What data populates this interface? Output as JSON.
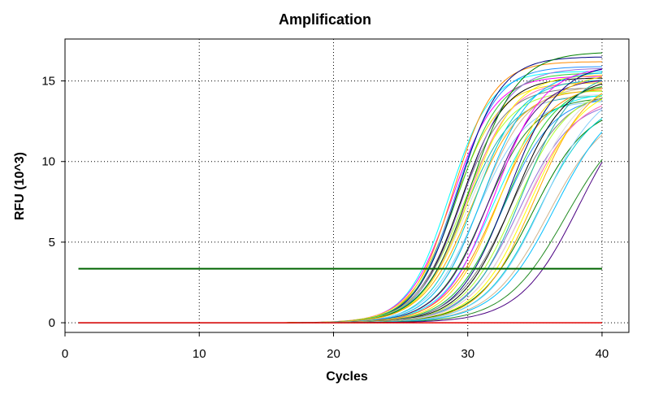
{
  "chart_data": {
    "type": "line",
    "title": "Amplification",
    "xlabel": "Cycles",
    "ylabel": "RFU (10^3)",
    "xlim": [
      0,
      42
    ],
    "ylim": [
      -0.6,
      17.6
    ],
    "xticks": [
      0,
      10,
      20,
      30,
      40
    ],
    "yticks": [
      0,
      5,
      10,
      15
    ],
    "grid": true,
    "legend": "none",
    "threshold": {
      "value": 3.35,
      "x_start": 1,
      "x_end": 40,
      "color": "#006400"
    },
    "baseline": {
      "value": 0,
      "color": "#e00000"
    },
    "colors": [
      "#00ffff",
      "#ff00ff",
      "#ff8c00",
      "#ffd700",
      "#1e90ff",
      "#32cd32",
      "#000080",
      "#808080",
      "#000000",
      "#adff2f",
      "#9370db",
      "#20b2aa",
      "#ff69b4",
      "#dcdcdc",
      "#ffff00",
      "#008000",
      "#ffa500",
      "#00ced1",
      "#87cefa",
      "#d2b48c",
      "#00bfff",
      "#228b22",
      "#4b0082"
    ],
    "curve_params": [
      {
        "c": 28.6,
        "k": 0.65,
        "p": 15.6
      },
      {
        "c": 28.8,
        "k": 0.62,
        "p": 15.3
      },
      {
        "c": 28.9,
        "k": 0.66,
        "p": 16.2
      },
      {
        "c": 29.0,
        "k": 0.6,
        "p": 14.9
      },
      {
        "c": 29.1,
        "k": 0.64,
        "p": 15.9
      },
      {
        "c": 29.2,
        "k": 0.61,
        "p": 15.5
      },
      {
        "c": 29.3,
        "k": 0.63,
        "p": 16.5
      },
      {
        "c": 29.4,
        "k": 0.6,
        "p": 14.6
      },
      {
        "c": 29.5,
        "k": 0.62,
        "p": 15.2
      },
      {
        "c": 29.6,
        "k": 0.58,
        "p": 14.4
      },
      {
        "c": 29.7,
        "k": 0.6,
        "p": 15.8
      },
      {
        "c": 29.8,
        "k": 0.57,
        "p": 14.1
      },
      {
        "c": 29.9,
        "k": 0.6,
        "p": 15.0
      },
      {
        "c": 30.0,
        "k": 0.56,
        "p": 14.2
      },
      {
        "c": 30.1,
        "k": 0.58,
        "p": 15.4
      },
      {
        "c": 30.2,
        "k": 0.57,
        "p": 16.8
      },
      {
        "c": 30.3,
        "k": 0.55,
        "p": 14.5
      },
      {
        "c": 30.5,
        "k": 0.58,
        "p": 15.1
      },
      {
        "c": 30.7,
        "k": 0.55,
        "p": 13.8
      },
      {
        "c": 30.9,
        "k": 0.57,
        "p": 14.7
      },
      {
        "c": 31.1,
        "k": 0.56,
        "p": 15.6
      },
      {
        "c": 31.3,
        "k": 0.55,
        "p": 14.0
      },
      {
        "c": 31.6,
        "k": 0.54,
        "p": 15.2
      },
      {
        "c": 31.8,
        "k": 0.53,
        "p": 14.3
      },
      {
        "c": 32.0,
        "k": 0.55,
        "p": 15.9
      },
      {
        "c": 32.2,
        "k": 0.52,
        "p": 14.8
      },
      {
        "c": 32.4,
        "k": 0.54,
        "p": 15.5
      },
      {
        "c": 32.6,
        "k": 0.53,
        "p": 14.1
      },
      {
        "c": 32.8,
        "k": 0.52,
        "p": 15.0
      },
      {
        "c": 33.0,
        "k": 0.54,
        "p": 16.1
      },
      {
        "c": 33.2,
        "k": 0.5,
        "p": 14.4
      },
      {
        "c": 33.4,
        "k": 0.52,
        "p": 15.3
      },
      {
        "c": 33.6,
        "k": 0.51,
        "p": 14.6
      },
      {
        "c": 33.8,
        "k": 0.5,
        "p": 13.9
      },
      {
        "c": 34.0,
        "k": 0.52,
        "p": 15.7
      },
      {
        "c": 34.2,
        "k": 0.5,
        "p": 14.2
      },
      {
        "c": 34.4,
        "k": 0.49,
        "p": 15.1
      },
      {
        "c": 34.6,
        "k": 0.5,
        "p": 14.8
      },
      {
        "c": 34.8,
        "k": 0.48,
        "p": 13.6
      },
      {
        "c": 35.0,
        "k": 0.5,
        "p": 15.4
      },
      {
        "c": 35.3,
        "k": 0.48,
        "p": 14.0
      },
      {
        "c": 35.6,
        "k": 0.47,
        "p": 14.9
      },
      {
        "c": 36.0,
        "k": 0.46,
        "p": 13.5
      },
      {
        "c": 36.5,
        "k": 0.45,
        "p": 14.3
      },
      {
        "c": 37.3,
        "k": 0.44,
        "p": 13.2
      },
      {
        "c": 38.3,
        "k": 0.45,
        "p": 14.6
      }
    ]
  }
}
